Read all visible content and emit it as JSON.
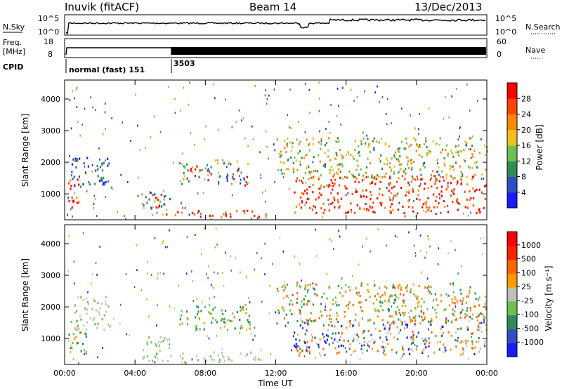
{
  "header": {
    "station": "Inuvik (fitACF)",
    "beam": "Beam 14",
    "date": "13/Dec/2013"
  },
  "strip_labels": {
    "nsky": "N.Sky",
    "nsky_top": "10^5",
    "nsky_bottom": "10^0",
    "nsearch": "N.Search",
    "nsearch_top": "10^5",
    "nsearch_bottom": "10^0",
    "freq": "Freq.",
    "freq_unit": "[MHz]",
    "freq_top": "18",
    "freq_bottom": "8",
    "nave": "Nave",
    "nave_top": "60",
    "nave_bottom": "0",
    "cpid": "CPID",
    "cpid_mode": "normal (fast) 151",
    "cpid_alt": "3503"
  },
  "chart_data": [
    {
      "type": "heatmap",
      "name": "power",
      "ylabel": "Slant Range [km]",
      "xlabel": "",
      "y_ticks": [
        "1000",
        "2000",
        "3000",
        "4000"
      ],
      "x_ticks": [
        "00:00",
        "04:00",
        "08:00",
        "12:00",
        "16:00",
        "20:00",
        "00:00"
      ],
      "ylim": [
        180,
        4600
      ],
      "xlim_hours": [
        0,
        24
      ],
      "colorbar": {
        "label": "Power [dB]",
        "ticks": [
          "4",
          "8",
          "12",
          "16",
          "20",
          "24",
          "28"
        ],
        "colors": [
          "#1a1aff",
          "#3050c0",
          "#2e8c5a",
          "#6ec050",
          "#f0c020",
          "#ff8800",
          "#ff4400",
          "#ff0000"
        ]
      },
      "scatter_regions_hours_km": [
        {
          "t0": 0.2,
          "t1": 1.0,
          "r0": 500,
          "r1": 1500,
          "level": "high"
        },
        {
          "t0": 0.3,
          "t1": 2.5,
          "r0": 1200,
          "r1": 2200,
          "level": "low"
        },
        {
          "t0": 4.3,
          "t1": 6.0,
          "r0": 300,
          "r1": 1100,
          "level": "mixed"
        },
        {
          "t0": 6.0,
          "t1": 11.5,
          "r0": 250,
          "r1": 500,
          "level": "high"
        },
        {
          "t0": 6.5,
          "t1": 10.5,
          "r0": 1300,
          "r1": 2100,
          "level": "mixed"
        },
        {
          "t0": 13.0,
          "t1": 24.0,
          "r0": 400,
          "r1": 1600,
          "level": "high"
        },
        {
          "t0": 12.0,
          "t1": 24.0,
          "r0": 1500,
          "r1": 2800,
          "level": "mid"
        }
      ]
    },
    {
      "type": "heatmap",
      "name": "velocity",
      "ylabel": "Slant Range [km]",
      "xlabel": "Time UT",
      "y_ticks": [
        "1000",
        "2000",
        "3000",
        "4000"
      ],
      "x_ticks": [
        "00:00",
        "04:00",
        "08:00",
        "12:00",
        "16:00",
        "20:00",
        "00:00"
      ],
      "ylim": [
        180,
        4600
      ],
      "xlim_hours": [
        0,
        24
      ],
      "colorbar": {
        "label": "Velocity [m s⁻¹]",
        "ticks": [
          "1000",
          "500",
          "100",
          "25",
          "-25",
          "-100",
          "-500",
          "-1000"
        ],
        "colors": [
          "#1a1aff",
          "#3050c0",
          "#2e8c5a",
          "#6ec050",
          "#c0c0b8",
          "#ff9900",
          "#ff6600",
          "#ff2200",
          "#ff0000"
        ]
      },
      "scatter_regions_hours_km": [
        {
          "t0": 0.2,
          "t1": 1.2,
          "r0": 500,
          "r1": 1600,
          "level": "green"
        },
        {
          "t0": 0.5,
          "t1": 2.5,
          "r0": 1300,
          "r1": 2400,
          "level": "grey"
        },
        {
          "t0": 4.3,
          "t1": 6.0,
          "r0": 300,
          "r1": 1100,
          "level": "grey"
        },
        {
          "t0": 6.0,
          "t1": 11.0,
          "r0": 250,
          "r1": 600,
          "level": "grey"
        },
        {
          "t0": 6.5,
          "t1": 10.5,
          "r0": 1300,
          "r1": 2100,
          "level": "green"
        },
        {
          "t0": 13.0,
          "t1": 24.0,
          "r0": 500,
          "r1": 1600,
          "level": "mixed"
        },
        {
          "t0": 12.0,
          "t1": 24.0,
          "r0": 1500,
          "r1": 2800,
          "level": "orange"
        }
      ]
    }
  ]
}
